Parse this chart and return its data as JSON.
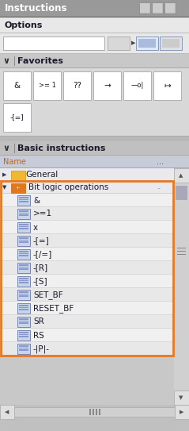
{
  "title": "Instructions",
  "bg_outer": "#c8c8c8",
  "header_bg": "#a8a8a8",
  "header_text_color": "#ffffff",
  "header_text": "Instructions",
  "options_label": "Options",
  "options_bg": "#e8e8e8",
  "search_bg": "#e8e8e8",
  "fav_header_bg": "#c8c8c8",
  "fav_header_label": "Favorites",
  "fav_area_bg": "#d8d8d8",
  "fav_btn_bg": "#ffffff",
  "fav_btn_border": "#b0b0b0",
  "fav_items_row1": [
    "&",
    ">= 1",
    "??",
    "→",
    "—o|",
    "↦"
  ],
  "fav_item_row2": "-[=]",
  "basic_header_bg": "#c0c0c0",
  "basic_header_label": "Basic instructions",
  "name_row_bg": "#c8ccd8",
  "name_label": "Name",
  "orange_border": "#e87820",
  "general_label": "General",
  "folder_color": "#f0b830",
  "bit_logic_label": "Bit logic operations",
  "bit_icon_bg": "#e07818",
  "bit_logic_items": [
    "&",
    ">=1",
    "x",
    "-[=]",
    "-[/=]",
    "-[R]",
    "-[S]",
    "SET_BF",
    "RESET_BF",
    "SR",
    "RS",
    "-|P|-"
  ],
  "item_bg_light": "#f0f0f0",
  "item_bg_dark": "#e8e8e8",
  "icon_bg": "#c8d4e8",
  "icon_border": "#6878a8",
  "sb_bg": "#d0d0d0",
  "sb_btn_bg": "#e0e0e0",
  "sb_handle": "#a8a8b8",
  "bottom_bar_bg": "#c0c0c0",
  "grid_icon1_bg": "#dde8f8",
  "grid_icon2_bg": "#e0e0e0",
  "text_dark": "#1a1a2a",
  "text_mid": "#444444"
}
